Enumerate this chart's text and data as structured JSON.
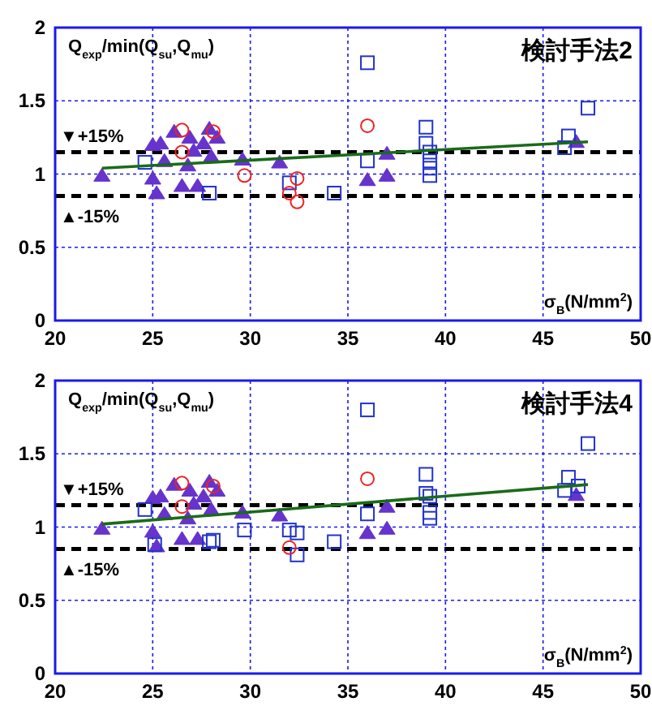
{
  "chart_data": [
    {
      "type": "scatter",
      "title": "検討手法2",
      "ylabel": "Q$_{exp}$/min(Q$_{su}$,Q$_{mu}$)",
      "xlabel": "σ$_{B}$(N/mm$^{2}$)",
      "xlim": [
        20,
        50
      ],
      "xticks": [
        20,
        25,
        30,
        35,
        40,
        45,
        50
      ],
      "ylim": [
        0,
        2
      ],
      "yticks": [
        0,
        0.5,
        1,
        1.5,
        2
      ],
      "grid": true,
      "ref_lines": [
        {
          "axis": "y",
          "value": 1.15,
          "label": "▼+15%",
          "color": "#000000",
          "line_style": "dashed"
        },
        {
          "axis": "y",
          "value": 0.85,
          "label": "▲-15%",
          "color": "#000000",
          "line_style": "dashed"
        }
      ],
      "series": [
        {
          "type": "scatter",
          "marker": "square",
          "color": "#2233cc",
          "x": [
            24.6,
            27.9,
            32.0,
            34.3,
            36.0,
            36.0,
            39.0,
            39.0,
            39.2,
            39.2,
            39.2,
            39.2,
            46.1,
            46.3,
            47.3
          ],
          "values": [
            1.08,
            0.87,
            0.94,
            0.87,
            1.76,
            1.09,
            1.32,
            1.21,
            1.15,
            1.09,
            1.04,
            0.99,
            1.18,
            1.26,
            1.45
          ]
        },
        {
          "type": "scatter",
          "marker": "circle",
          "color": "#ee2222",
          "x": [
            26.5,
            26.5,
            28.1,
            29.7,
            32.0,
            32.4,
            32.4,
            36.0
          ],
          "values": [
            1.3,
            1.15,
            1.29,
            0.99,
            0.87,
            0.97,
            0.81,
            1.33
          ]
        },
        {
          "type": "scatter",
          "marker": "triangle",
          "color": "#6633cc",
          "x": [
            22.4,
            25.0,
            25.4,
            25.0,
            25.2,
            25.6,
            26.1,
            26.5,
            26.8,
            26.9,
            27.1,
            27.3,
            27.6,
            27.9,
            28.0,
            28.3,
            29.6,
            31.5,
            36.0,
            37.0,
            37.0,
            46.7
          ],
          "values": [
            0.99,
            1.2,
            1.21,
            0.97,
            0.87,
            1.09,
            1.29,
            0.92,
            1.06,
            1.25,
            1.16,
            0.92,
            1.21,
            1.31,
            1.12,
            1.25,
            1.1,
            1.08,
            0.96,
            1.14,
            0.99,
            1.22
          ]
        },
        {
          "type": "line",
          "color": "#1a6b1a",
          "x": [
            22.4,
            47.3
          ],
          "values": [
            1.04,
            1.22
          ]
        }
      ]
    },
    {
      "type": "scatter",
      "title": "検討手法4",
      "ylabel": "Q$_{exp}$/min(Q$_{su}$,Q$_{mu}$)",
      "xlabel": "σ$_{B}$(N/mm$^{2}$)",
      "xlim": [
        20,
        50
      ],
      "xticks": [
        20,
        25,
        30,
        35,
        40,
        45,
        50
      ],
      "ylim": [
        0,
        2
      ],
      "yticks": [
        0,
        0.5,
        1,
        1.5,
        2
      ],
      "grid": true,
      "ref_lines": [
        {
          "axis": "y",
          "value": 1.15,
          "label": "▼+15%",
          "color": "#000000",
          "line_style": "dashed"
        },
        {
          "axis": "y",
          "value": 0.85,
          "label": "▲-15%",
          "color": "#000000",
          "line_style": "dashed"
        }
      ],
      "series": [
        {
          "type": "scatter",
          "marker": "square",
          "color": "#2233cc",
          "x": [
            24.6,
            25.1,
            27.9,
            28.1,
            29.7,
            32.0,
            32.4,
            32.4,
            34.3,
            36.0,
            36.0,
            39.0,
            39.0,
            39.2,
            39.2,
            39.2,
            46.1,
            46.3,
            46.8,
            47.3
          ],
          "values": [
            1.12,
            0.88,
            0.9,
            0.91,
            0.98,
            0.98,
            0.96,
            0.81,
            0.9,
            1.8,
            1.09,
            1.36,
            1.23,
            1.21,
            1.1,
            1.06,
            1.25,
            1.34,
            1.28,
            1.57
          ]
        },
        {
          "type": "scatter",
          "marker": "circle",
          "color": "#ee2222",
          "x": [
            26.5,
            26.5,
            28.1,
            32.0,
            36.0
          ],
          "values": [
            1.3,
            1.14,
            1.28,
            0.86,
            1.33
          ]
        },
        {
          "type": "scatter",
          "marker": "triangle",
          "color": "#6633cc",
          "x": [
            22.4,
            25.0,
            25.4,
            25.0,
            25.2,
            25.6,
            26.1,
            26.5,
            26.8,
            26.9,
            27.1,
            27.3,
            27.6,
            27.9,
            28.0,
            28.3,
            29.6,
            31.5,
            36.0,
            37.0,
            37.0,
            46.7
          ],
          "values": [
            0.99,
            1.2,
            1.21,
            0.97,
            0.87,
            1.09,
            1.29,
            0.92,
            1.06,
            1.25,
            1.16,
            0.92,
            1.21,
            1.31,
            1.12,
            1.25,
            1.1,
            1.08,
            0.96,
            1.14,
            0.99,
            1.22
          ]
        },
        {
          "type": "line",
          "color": "#1a6b1a",
          "x": [
            22.4,
            47.3
          ],
          "values": [
            1.02,
            1.29
          ]
        }
      ]
    }
  ]
}
